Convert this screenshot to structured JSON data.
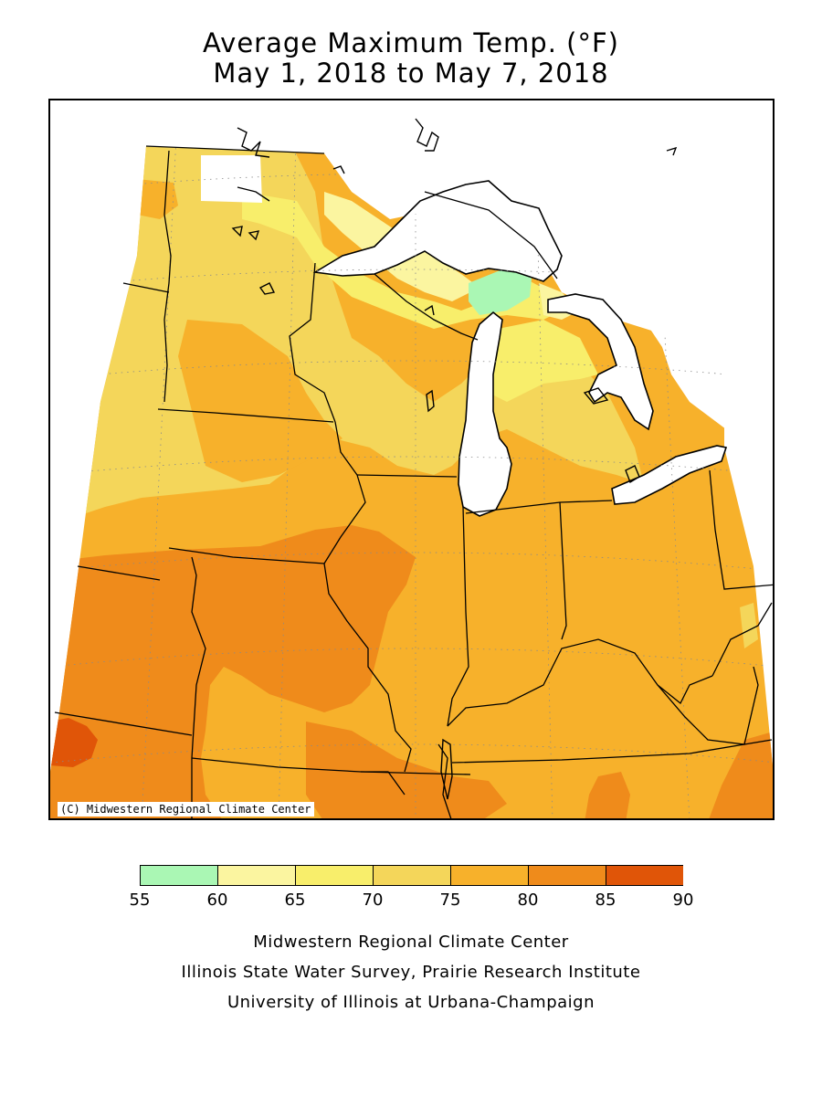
{
  "title": {
    "line1": "Average Maximum Temp. (°F)",
    "line2": "May 1, 2018 to May 7, 2018"
  },
  "map": {
    "copyright": "(C) Midwestern Regional Climate Center",
    "zones": [
      {
        "name": "55-60",
        "color": "#aaf7b4"
      },
      {
        "name": "60-65",
        "color": "#fbf5a0"
      },
      {
        "name": "65-70",
        "color": "#f8ee6b"
      },
      {
        "name": "70-75",
        "color": "#f4d65a"
      },
      {
        "name": "75-80",
        "color": "#f7b12b"
      },
      {
        "name": "80-85",
        "color": "#ef8b1b"
      },
      {
        "name": "85-90",
        "color": "#e05508"
      }
    ]
  },
  "legend": {
    "ticks": [
      "55",
      "60",
      "65",
      "70",
      "75",
      "80",
      "85",
      "90"
    ],
    "colors": [
      "#aaf7b4",
      "#fbf5a0",
      "#f8ee6b",
      "#f4d65a",
      "#f7b12b",
      "#ef8b1b",
      "#e05508"
    ]
  },
  "footer": {
    "line1": "Midwestern Regional Climate Center",
    "line2": "Illinois State Water Survey, Prairie Research Institute",
    "line3": "University of Illinois at Urbana-Champaign"
  }
}
